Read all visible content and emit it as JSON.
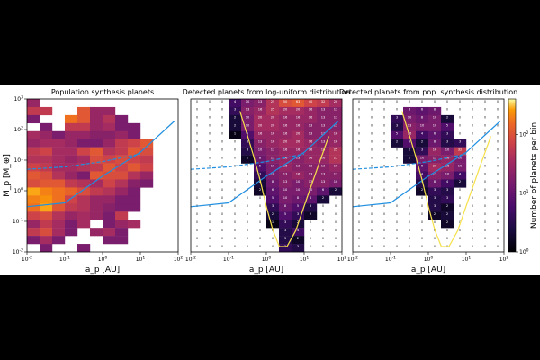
{
  "chart_data": {
    "type": "heatmap",
    "colormap": "inferno",
    "colors": {
      "black_bar": "#000000",
      "mass_line": "#1f8fe0",
      "detection_curve": "#f6e04a",
      "background": "#ffffff"
    },
    "x_axis": {
      "label": "a_p [AU]",
      "scale": "log",
      "range": [
        0.01,
        100
      ],
      "tick_labels": [
        "10^-2",
        "10^-1",
        "10^0",
        "10^1",
        "10^2"
      ]
    },
    "y_axis": {
      "label": "M_p [M_⊕]",
      "scale": "log",
      "range": [
        0.01,
        1000
      ],
      "tick_labels": [
        "10^-2",
        "10^-1",
        "10^0",
        "10^1",
        "10^2",
        "10^3"
      ]
    },
    "colorbar": {
      "label": "Number of planets per bin",
      "scale": "log",
      "range": [
        1,
        400
      ],
      "tick_labels": [
        "10^0",
        "10^1",
        "10^2"
      ]
    },
    "panels": [
      {
        "title": "Population synthesis planets",
        "grid": [
          [
            1.2,
            0,
            0,
            0,
            0,
            0,
            0,
            0,
            0,
            0,
            0,
            0
          ],
          [
            1.5,
            1.5,
            0,
            0,
            1.8,
            1.2,
            1.2,
            0,
            0,
            0,
            0,
            0
          ],
          [
            1,
            0,
            0,
            2,
            1.8,
            1.2,
            1.4,
            1,
            0,
            0,
            0,
            0
          ],
          [
            0,
            1,
            0,
            1.5,
            1.5,
            1.2,
            1.3,
            1,
            1,
            0,
            0,
            0
          ],
          [
            1.3,
            1.2,
            1,
            1.2,
            1.2,
            1.1,
            1.1,
            1.2,
            1,
            0,
            0,
            0
          ],
          [
            1.2,
            1.3,
            1.3,
            1.2,
            1,
            1,
            1.2,
            1.5,
            1.6,
            1.8,
            0,
            0
          ],
          [
            1.5,
            1.6,
            1.3,
            1.3,
            1.6,
            1.8,
            1.4,
            1.5,
            1.8,
            1.7,
            0,
            0
          ],
          [
            1.4,
            1.4,
            1.3,
            1.2,
            1.3,
            1.7,
            1.6,
            1.7,
            1.6,
            1.5,
            0,
            0
          ],
          [
            1.6,
            1.5,
            1.3,
            1.3,
            1.4,
            1.5,
            1.8,
            1.6,
            1.8,
            1.6,
            0,
            0
          ],
          [
            1.8,
            1.7,
            1.4,
            1.2,
            1,
            1.8,
            1.7,
            1.7,
            1.4,
            1.2,
            0,
            0
          ],
          [
            1.7,
            1.8,
            1.8,
            1.5,
            1.4,
            1.3,
            1.6,
            1.4,
            1.1,
            1,
            0,
            0
          ],
          [
            2.3,
            2.1,
            2,
            1.9,
            1.7,
            1.5,
            1.4,
            1.2,
            1,
            0,
            0,
            0
          ],
          [
            2.1,
            2.2,
            2,
            1.6,
            1.4,
            1.2,
            1.2,
            1,
            1,
            0,
            0,
            0
          ],
          [
            2,
            2.3,
            1.8,
            1.5,
            1.4,
            1.2,
            1.1,
            1,
            1,
            0,
            0,
            0
          ],
          [
            1.6,
            1.7,
            1.4,
            1.2,
            1.3,
            1.2,
            1,
            1.5,
            0,
            0,
            0,
            0
          ],
          [
            1.2,
            1.5,
            1.3,
            1,
            1.3,
            0,
            1,
            1.2,
            1.3,
            0,
            0,
            0
          ],
          [
            1.5,
            1.7,
            1.3,
            1,
            0,
            1.2,
            1.3,
            1,
            0,
            0,
            0,
            0
          ],
          [
            1,
            1.3,
            1,
            0,
            0,
            0,
            1,
            1,
            0,
            0,
            0,
            0
          ],
          [
            0,
            1,
            0,
            0,
            1,
            0,
            0,
            0,
            0,
            0,
            0,
            0
          ]
        ]
      },
      {
        "title": "Detected planets from log-uniform distribution",
        "grid": [
          [
            0,
            0,
            0,
            0.6,
            1,
            1.1,
            1.4,
            1.7,
            1.8,
            1.6,
            1.5,
            1.3
          ],
          [
            0,
            0,
            0,
            0.5,
            1.1,
            1.2,
            1.4,
            1.3,
            1.3,
            1.2,
            1.1,
            1.1
          ],
          [
            0,
            0,
            0,
            0.3,
            1,
            1.3,
            1.3,
            1.2,
            1.2,
            1.2,
            1.1,
            1.1
          ],
          [
            0,
            0,
            0,
            0.3,
            1,
            1.3,
            1.3,
            1.2,
            1.2,
            1.1,
            1.1,
            1.1
          ],
          [
            0,
            0,
            0,
            0.1,
            0.7,
            1.2,
            1.2,
            1.2,
            1.3,
            1.1,
            1.1,
            1.2
          ],
          [
            0,
            0,
            0,
            0,
            0.5,
            1.1,
            1.2,
            1.3,
            1.3,
            1.2,
            1.1,
            1.2
          ],
          [
            0,
            0,
            0,
            0,
            0.4,
            1,
            1.1,
            1.2,
            1.2,
            1.2,
            1.2,
            1.4
          ],
          [
            0,
            0,
            0,
            0,
            0.2,
            0.9,
            1.1,
            1.2,
            1.1,
            1.2,
            1.2,
            1.4
          ],
          [
            0,
            0,
            0,
            0,
            0,
            0.7,
            1,
            1.2,
            1.1,
            1.1,
            1.1,
            1.2
          ],
          [
            0,
            0,
            0,
            0,
            0,
            0.5,
            1,
            1.1,
            1.2,
            1.1,
            1.1,
            1.1
          ],
          [
            0,
            0,
            0,
            0,
            0,
            0.3,
            0.9,
            1.1,
            1,
            1.1,
            1.1,
            1
          ],
          [
            0,
            0,
            0,
            0,
            0,
            0.2,
            0.8,
            1,
            1,
            1,
            0.8,
            0.3
          ],
          [
            0,
            0,
            0,
            0,
            0,
            0,
            0.7,
            1,
            0.9,
            0.8,
            0.3,
            0
          ],
          [
            0,
            0,
            0,
            0,
            0,
            0,
            0.5,
            0.9,
            0.7,
            0.4,
            0,
            0
          ],
          [
            0,
            0,
            0,
            0,
            0,
            0,
            0.3,
            0.7,
            0.5,
            0.2,
            0,
            0
          ],
          [
            0,
            0,
            0,
            0,
            0,
            0,
            0.1,
            0.5,
            0.3,
            0,
            0,
            0
          ],
          [
            0,
            0,
            0,
            0,
            0,
            0,
            0,
            0.4,
            0.6,
            0,
            0,
            0
          ],
          [
            0,
            0,
            0,
            0,
            0,
            0,
            0,
            0.4,
            0.2,
            0,
            0,
            0
          ],
          [
            0,
            0,
            0,
            0,
            0,
            0,
            0,
            0.5,
            0.4,
            0,
            0,
            0
          ]
        ]
      },
      {
        "title": "Detected planets from pop. synthesis distribution",
        "grid": [
          [
            0,
            0,
            0,
            0,
            0,
            0,
            0,
            0,
            0,
            0,
            0,
            0
          ],
          [
            0,
            0,
            0,
            0,
            0.9,
            0.8,
            0.9,
            0,
            0,
            0,
            0,
            0
          ],
          [
            0,
            0,
            0,
            0.5,
            1,
            0.9,
            1,
            0.3,
            0,
            0,
            0,
            0
          ],
          [
            0,
            0,
            0,
            0.4,
            1.1,
            1,
            1,
            0.7,
            0,
            0,
            0,
            0
          ],
          [
            0,
            0,
            0,
            0.7,
            1.2,
            0.6,
            0.8,
            0.5,
            0,
            0,
            0,
            0
          ],
          [
            0,
            0,
            0,
            0.3,
            0.7,
            0.3,
            0.9,
            0.4,
            0.5,
            0,
            0,
            0
          ],
          [
            0,
            0,
            0,
            0,
            0.3,
            0.5,
            1.2,
            1,
            1.5,
            0,
            0,
            0
          ],
          [
            0,
            0,
            0,
            0,
            0.3,
            1,
            1.1,
            1.2,
            1,
            0,
            0,
            0
          ],
          [
            0,
            0,
            0,
            0,
            0,
            0.8,
            1.3,
            1.2,
            1,
            0,
            0,
            0
          ],
          [
            0,
            0,
            0,
            0,
            0,
            0.6,
            1.1,
            1,
            0.6,
            0,
            0,
            0
          ],
          [
            0,
            0,
            0,
            0,
            0,
            0.4,
            0.9,
            0.6,
            0.3,
            0,
            0,
            0
          ],
          [
            0,
            0,
            0,
            0,
            0,
            0.2,
            0.5,
            0.4,
            0,
            0,
            0,
            0
          ],
          [
            0,
            0,
            0,
            0,
            0,
            0,
            0.4,
            0.5,
            0,
            0,
            0,
            0
          ],
          [
            0,
            0,
            0,
            0,
            0,
            0,
            0.4,
            0.2,
            0,
            0,
            0,
            0
          ],
          [
            0,
            0,
            0,
            0,
            0,
            0,
            0.2,
            0.3,
            0,
            0,
            0,
            0
          ],
          [
            0,
            0,
            0,
            0,
            0,
            0,
            0,
            0.2,
            0,
            0,
            0,
            0
          ],
          [
            0,
            0,
            0,
            0,
            0,
            0,
            0,
            0,
            0,
            0,
            0,
            0
          ],
          [
            0,
            0,
            0,
            0,
            0,
            0,
            0,
            0,
            0,
            0,
            0,
            0
          ],
          [
            0,
            0,
            0,
            0,
            0,
            0,
            0,
            0,
            0,
            0,
            0,
            0
          ]
        ]
      }
    ],
    "mass_line": {
      "points": [
        [
          0.01,
          0.3
        ],
        [
          0.1,
          0.4
        ],
        [
          1,
          3
        ],
        [
          10,
          18
        ],
        [
          80,
          190
        ]
      ]
    },
    "mass_line_dashed": {
      "points": [
        [
          0.01,
          5
        ],
        [
          0.1,
          6
        ],
        [
          1,
          9
        ],
        [
          10,
          16
        ]
      ]
    },
    "detection_curve": {
      "points": [
        [
          0.2,
          400
        ],
        [
          0.3,
          80
        ],
        [
          0.45,
          15
        ],
        [
          0.7,
          2
        ],
        [
          1,
          0.3
        ],
        [
          1.5,
          0.05
        ],
        [
          2.2,
          0.015
        ],
        [
          3.5,
          0.015
        ],
        [
          6,
          0.05
        ],
        [
          12,
          0.6
        ],
        [
          25,
          8
        ],
        [
          45,
          60
        ]
      ]
    }
  }
}
